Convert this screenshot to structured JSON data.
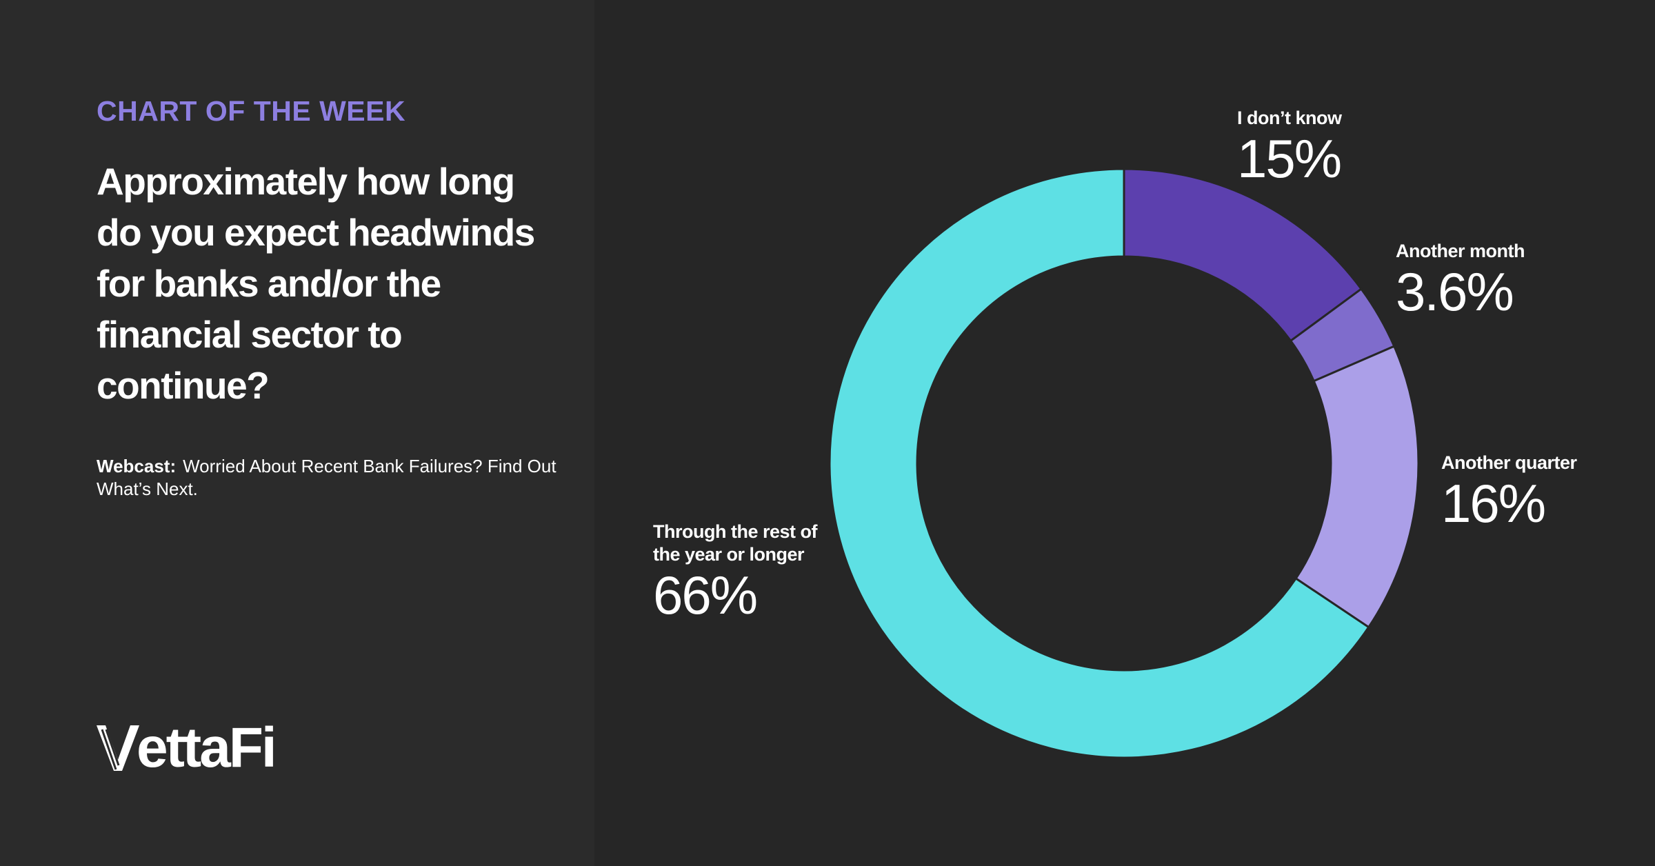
{
  "header": {
    "eyebrow": "CHART OF THE WEEK",
    "question": "Approximately how long do you expect headwinds for banks and/or the financial sector to continue?"
  },
  "webcast": {
    "label": "Webcast:",
    "title": "Worried About Recent Bank Failures? Find Out What’s Next."
  },
  "logo": {
    "text": "ettaFi",
    "icon": "vettafi-v-logo-icon"
  },
  "colors": {
    "background": "#262626",
    "panel": "#2b2b2b",
    "accent": "#8d7fe0"
  },
  "chart_data": {
    "type": "pie",
    "style": "donut",
    "slices": [
      {
        "label": "I don’t know",
        "value": 15,
        "display": "15%",
        "color": "#5c40ae"
      },
      {
        "label": "Another month",
        "value": 3.6,
        "display": "3.6%",
        "color": "#7f6ccc"
      },
      {
        "label": "Another quarter",
        "value": 16,
        "display": "16%",
        "color": "#ab9fe8"
      },
      {
        "label": "Through the rest of the year or longer",
        "value": 66,
        "display": "66%",
        "color": "#5ee0e4"
      }
    ]
  }
}
